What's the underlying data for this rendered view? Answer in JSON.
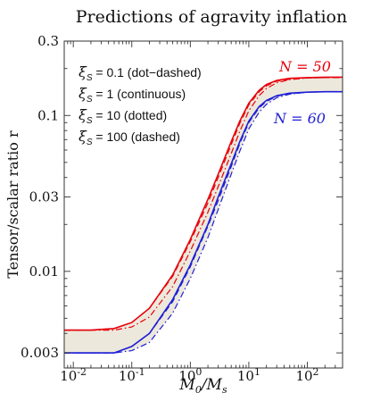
{
  "chart_data": {
    "type": "line",
    "title": "Predictions of agravity inflation",
    "xlabel": "M0/Ms",
    "ylabel": "Tensor/scalar ratio r",
    "xscale": "log",
    "yscale": "log",
    "xlim": [
      0.007,
      400
    ],
    "ylim": [
      0.0024,
      0.3
    ],
    "x_ticks": [
      {
        "value": 0.01,
        "base": "10",
        "exp": "-2"
      },
      {
        "value": 0.1,
        "base": "10",
        "exp": "-1"
      },
      {
        "value": 1,
        "base": "10",
        "exp": "0"
      },
      {
        "value": 10,
        "base": "10",
        "exp": "1"
      },
      {
        "value": 100,
        "base": "10",
        "exp": "2"
      }
    ],
    "y_ticks": [
      {
        "value": 0.003,
        "label": "0.003"
      },
      {
        "value": 0.01,
        "label": "0.01"
      },
      {
        "value": 0.03,
        "label": "0.03"
      },
      {
        "value": 0.1,
        "label": "0.1"
      },
      {
        "value": 0.3,
        "label": "0.3"
      }
    ],
    "grid": false,
    "legend_lines": [
      {
        "sub": "S",
        "text": " = 0.1 (dot−dashed)"
      },
      {
        "sub": "S",
        "text": " = 1 (continuous)"
      },
      {
        "sub": "S",
        "text": " = 10 (dotted)"
      },
      {
        "sub": "S",
        "text": " = 100 (dashed)"
      }
    ],
    "annotations": [
      {
        "text": "N = 50",
        "color": "#e8000b"
      },
      {
        "text": "N = 60",
        "color": "#1f1fd6"
      }
    ],
    "band_color": "#ece8dc",
    "x": [
      0.007,
      0.02,
      0.05,
      0.1,
      0.2,
      0.5,
      1,
      2,
      3,
      5,
      7,
      10,
      15,
      20,
      30,
      50,
      100,
      200,
      400
    ],
    "series": [
      {
        "name": "N = 50",
        "style": "continuous",
        "color": "#e8000b",
        "values": [
          0.0042,
          0.0042,
          0.0043,
          0.0047,
          0.0058,
          0.0095,
          0.016,
          0.029,
          0.042,
          0.068,
          0.092,
          0.12,
          0.145,
          0.158,
          0.168,
          0.173,
          0.175,
          0.176,
          0.176
        ]
      },
      {
        "name": "N = 50",
        "style": "dashed",
        "color": "#e8000b",
        "values": [
          0.0042,
          0.0042,
          0.0043,
          0.0047,
          0.0058,
          0.0093,
          0.0155,
          0.0275,
          0.04,
          0.065,
          0.089,
          0.117,
          0.142,
          0.155,
          0.166,
          0.171,
          0.174,
          0.175,
          0.175
        ]
      },
      {
        "name": "N = 50",
        "style": "dot-dashed",
        "color": "#e8000b",
        "values": [
          0.0042,
          0.0042,
          0.0042,
          0.0044,
          0.0051,
          0.008,
          0.0135,
          0.024,
          0.035,
          0.057,
          0.079,
          0.107,
          0.134,
          0.149,
          0.162,
          0.17,
          0.174,
          0.175,
          0.176
        ]
      },
      {
        "name": "N = 60",
        "style": "continuous",
        "color": "#1f1fd6",
        "values": [
          0.003,
          0.003,
          0.003,
          0.0033,
          0.004,
          0.0066,
          0.011,
          0.02,
          0.03,
          0.049,
          0.068,
          0.092,
          0.114,
          0.125,
          0.134,
          0.139,
          0.141,
          0.142,
          0.142
        ]
      },
      {
        "name": "N = 60",
        "style": "dashed",
        "color": "#1f1fd6",
        "values": [
          0.003,
          0.003,
          0.003,
          0.0033,
          0.004,
          0.0064,
          0.0107,
          0.0195,
          0.0285,
          0.047,
          0.066,
          0.09,
          0.112,
          0.123,
          0.133,
          0.138,
          0.141,
          0.142,
          0.142
        ]
      },
      {
        "name": "N = 60",
        "style": "dot-dashed",
        "color": "#1f1fd6",
        "values": [
          0.003,
          0.003,
          0.003,
          0.0031,
          0.0035,
          0.0054,
          0.009,
          0.0165,
          0.025,
          0.042,
          0.059,
          0.082,
          0.105,
          0.118,
          0.13,
          0.137,
          0.141,
          0.142,
          0.142
        ]
      }
    ]
  }
}
